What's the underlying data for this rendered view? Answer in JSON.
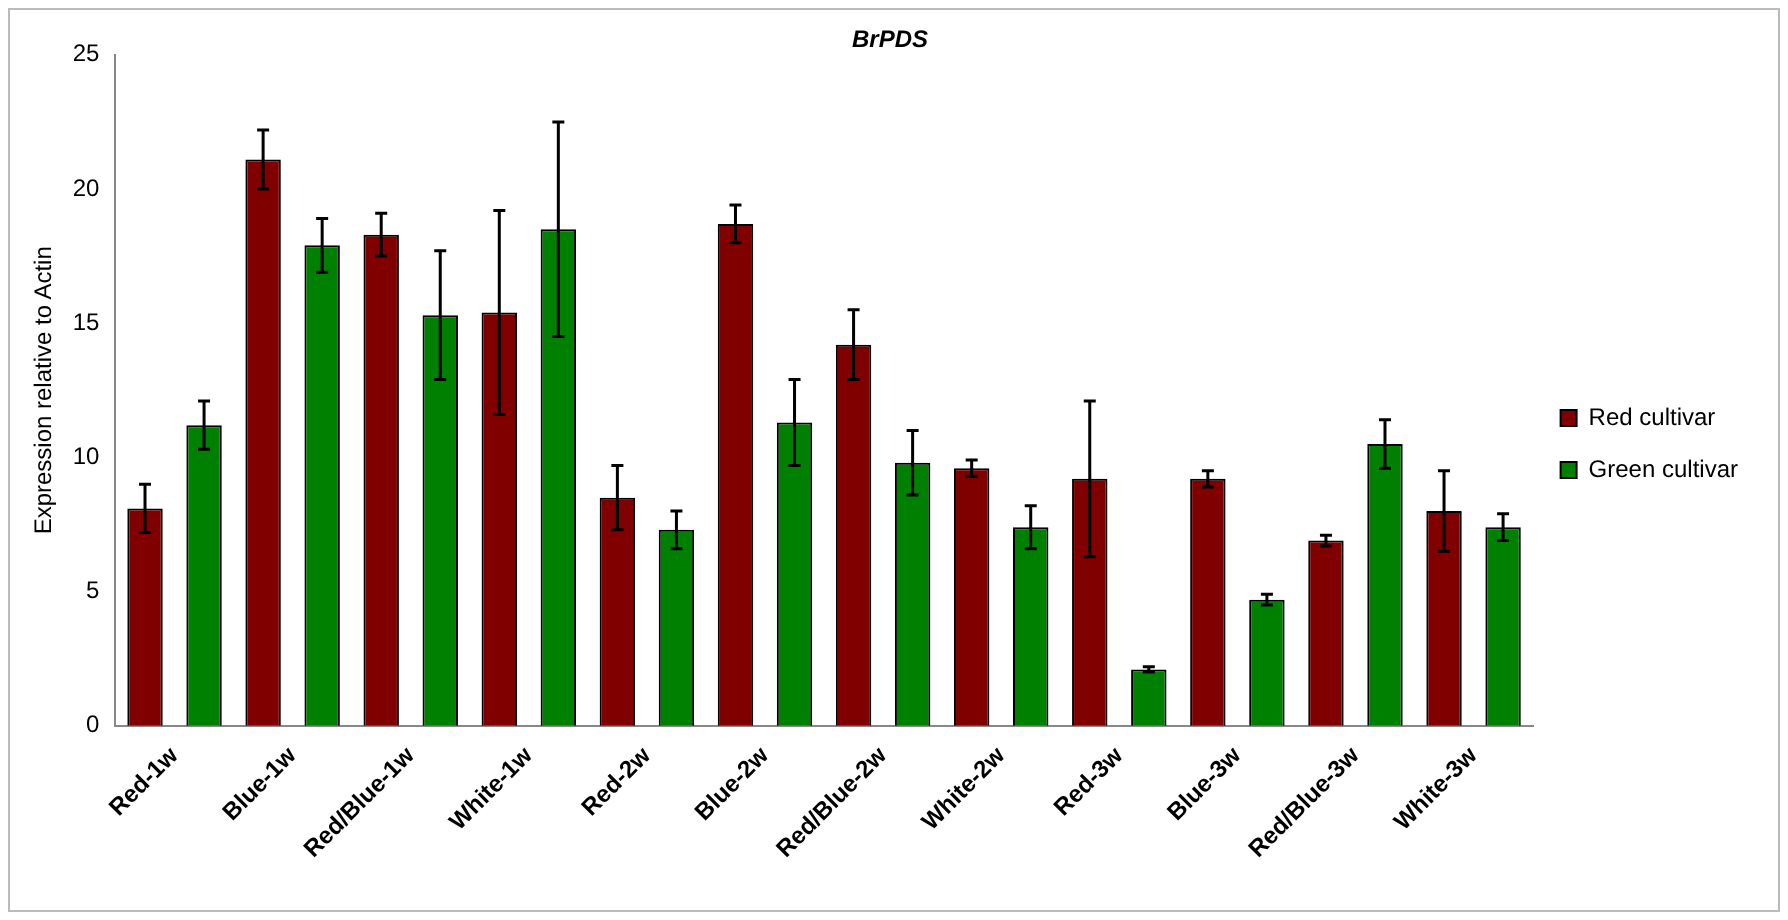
{
  "chart_data": {
    "type": "bar",
    "title": "BrPDS",
    "ylabel": "Expression relative to Actin",
    "categories": [
      "Red-1w",
      "Blue-1w",
      "Red/Blue-1w",
      "White-1w",
      "Red-2w",
      "Blue-2w",
      "Red/Blue-2w",
      "White-2w",
      "Red-3w",
      "Blue-3w",
      "Red/Blue-3w",
      "White-3w"
    ],
    "series": [
      {
        "name": "Red cultivar",
        "color": "#800000",
        "values": [
          8.1,
          21.1,
          18.3,
          15.4,
          8.5,
          18.7,
          14.2,
          9.6,
          9.2,
          9.2,
          6.9,
          8.0
        ],
        "errors": [
          0.9,
          1.1,
          0.8,
          3.8,
          1.2,
          0.7,
          1.3,
          0.3,
          2.9,
          0.3,
          0.2,
          1.5
        ]
      },
      {
        "name": "Green cultivar",
        "color": "#008000",
        "values": [
          11.2,
          17.9,
          15.3,
          18.5,
          7.3,
          11.3,
          9.8,
          7.4,
          2.1,
          4.7,
          10.5,
          7.4
        ],
        "errors": [
          0.9,
          1.0,
          2.4,
          4.0,
          0.7,
          1.6,
          1.2,
          0.8,
          0.1,
          0.2,
          0.9,
          0.5
        ]
      }
    ],
    "ylim": [
      0,
      25
    ],
    "yticks": [
      0,
      5,
      10,
      15,
      20,
      25
    ],
    "grid": false,
    "legend": "right"
  }
}
